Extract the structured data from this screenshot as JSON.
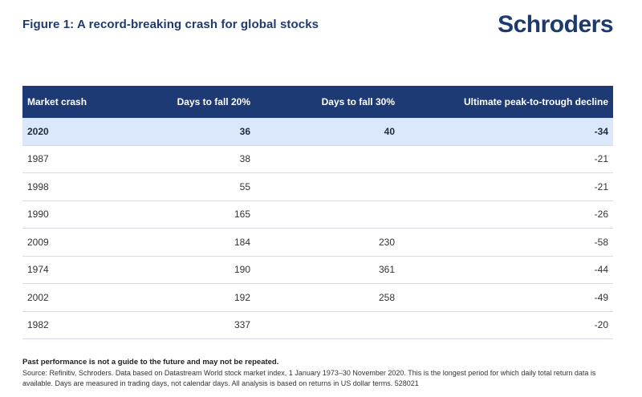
{
  "figure_title": "Figure 1: A record-breaking crash for global stocks",
  "brand": "Schroders",
  "chart_data": {
    "type": "table",
    "columns": [
      "Market crash",
      "Days to fall 20%",
      "Days to fall 30%",
      "Ultimate peak-to-trough decline"
    ],
    "rows": [
      [
        "2020",
        "36",
        "40",
        "-34"
      ],
      [
        "1987",
        "38",
        "",
        "-21"
      ],
      [
        "1998",
        "55",
        "",
        "-21"
      ],
      [
        "1990",
        "165",
        "",
        "-26"
      ],
      [
        "2009",
        "184",
        "230",
        "-58"
      ],
      [
        "1974",
        "190",
        "361",
        "-44"
      ],
      [
        "2002",
        "192",
        "258",
        "-49"
      ],
      [
        "1982",
        "337",
        "",
        "-20"
      ]
    ],
    "highlight_row": 0
  },
  "disclaimer": "Past performance is not a guide to the future and may not be repeated.",
  "source": "Source: Refinitiv, Schroders. Data based on Datastream World stock market index, 1 January 1973–30 November 2020. This is the longest period for which daily total return data is available. Days are measured in trading days, not calendar days. All analysis is based on returns in US dollar terms. 528021",
  "colors": {
    "header_bg": "#1d3a74",
    "highlight_bg": "#dbe7fa",
    "title": "#1f3a6e"
  }
}
